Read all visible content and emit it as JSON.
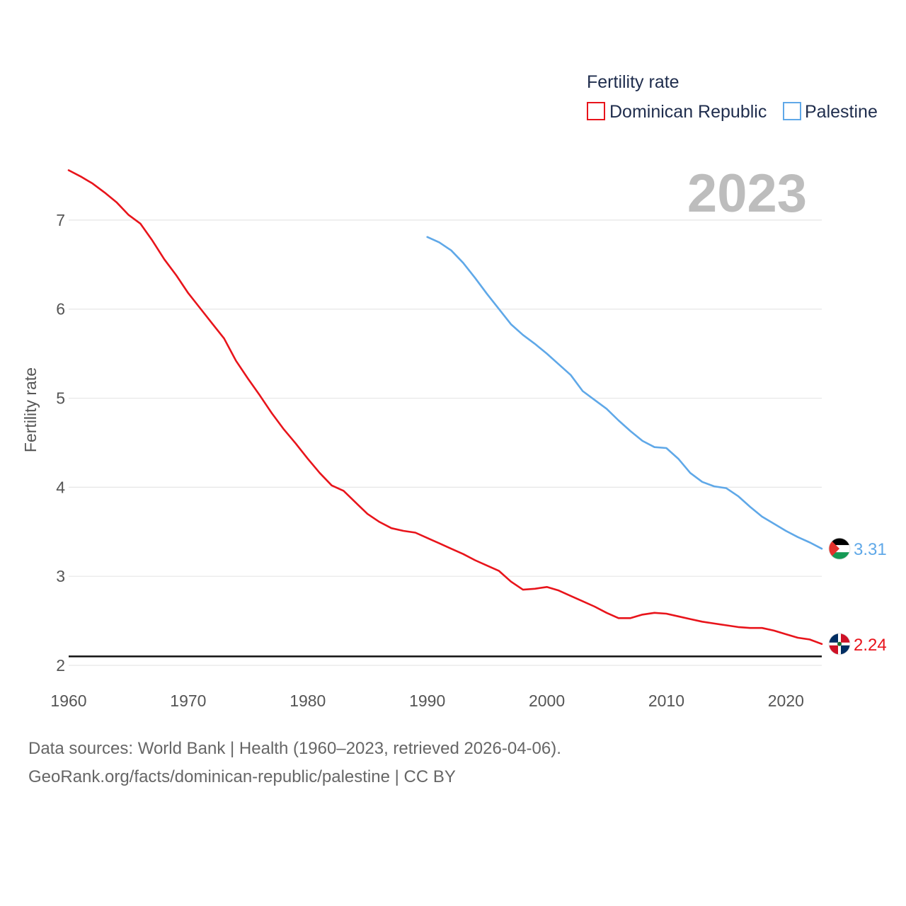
{
  "chart_data": {
    "type": "line",
    "year_display": "2023",
    "legend": {
      "title": "Fertility rate",
      "placement": "top-right"
    },
    "ylabel": "Fertility rate",
    "xlabel": "",
    "xlim": [
      1960,
      2023
    ],
    "ylim": [
      2,
      7.5
    ],
    "y_ticks": [
      2,
      3,
      4,
      5,
      6,
      7
    ],
    "x_ticks": [
      1960,
      1970,
      1980,
      1990,
      2000,
      2010,
      2020
    ],
    "reference_line": 2.1,
    "grid": true,
    "series": [
      {
        "name": "Dominican Republic",
        "color": "#e8141b",
        "end_label": "2.24",
        "flag": "dominican-republic-flag-icon",
        "x": [
          1960,
          1961,
          1962,
          1963,
          1964,
          1965,
          1966,
          1967,
          1968,
          1969,
          1970,
          1971,
          1972,
          1973,
          1974,
          1975,
          1976,
          1977,
          1978,
          1979,
          1980,
          1981,
          1982,
          1983,
          1984,
          1985,
          1986,
          1987,
          1988,
          1989,
          1990,
          1991,
          1992,
          1993,
          1994,
          1995,
          1996,
          1997,
          1998,
          1999,
          2000,
          2001,
          2002,
          2003,
          2004,
          2005,
          2006,
          2007,
          2008,
          2009,
          2010,
          2011,
          2012,
          2013,
          2014,
          2015,
          2016,
          2017,
          2018,
          2019,
          2020,
          2021,
          2022,
          2023
        ],
        "values": [
          7.56,
          7.49,
          7.41,
          7.31,
          7.2,
          7.06,
          6.96,
          6.77,
          6.56,
          6.38,
          6.18,
          6.01,
          5.84,
          5.67,
          5.42,
          5.22,
          5.03,
          4.83,
          4.65,
          4.49,
          4.32,
          4.16,
          4.02,
          3.96,
          3.83,
          3.7,
          3.61,
          3.54,
          3.51,
          3.49,
          3.43,
          3.37,
          3.31,
          3.25,
          3.18,
          3.12,
          3.06,
          2.94,
          2.85,
          2.86,
          2.88,
          2.84,
          2.78,
          2.72,
          2.66,
          2.59,
          2.53,
          2.53,
          2.57,
          2.59,
          2.58,
          2.55,
          2.52,
          2.49,
          2.47,
          2.45,
          2.43,
          2.42,
          2.42,
          2.39,
          2.35,
          2.31,
          2.29,
          2.24
        ]
      },
      {
        "name": "Palestine",
        "color": "#5fa8e8",
        "end_label": "3.31",
        "flag": "palestine-flag-icon",
        "x": [
          1990,
          1991,
          1992,
          1993,
          1994,
          1995,
          1996,
          1997,
          1998,
          1999,
          2000,
          2001,
          2002,
          2003,
          2004,
          2005,
          2006,
          2007,
          2008,
          2009,
          2010,
          2011,
          2012,
          2013,
          2014,
          2015,
          2016,
          2017,
          2018,
          2019,
          2020,
          2021,
          2022,
          2023
        ],
        "values": [
          6.81,
          6.75,
          6.66,
          6.52,
          6.35,
          6.17,
          6.0,
          5.83,
          5.71,
          5.61,
          5.5,
          5.38,
          5.26,
          5.08,
          4.98,
          4.88,
          4.75,
          4.63,
          4.52,
          4.45,
          4.44,
          4.32,
          4.16,
          4.06,
          4.01,
          3.99,
          3.9,
          3.78,
          3.67,
          3.59,
          3.51,
          3.44,
          3.38,
          3.31
        ]
      }
    ]
  },
  "source": {
    "line1": "Data sources: World Bank | Health (1960–2023, retrieved 2026-04-06).",
    "line2": "GeoRank.org/facts/dominican-republic/palestine | CC BY"
  },
  "colors": {
    "grid": "#e6e6e6",
    "reference": "#111111",
    "year": "#bdbdbd",
    "text": "#555555",
    "legend_text": "#1f2d4d"
  }
}
